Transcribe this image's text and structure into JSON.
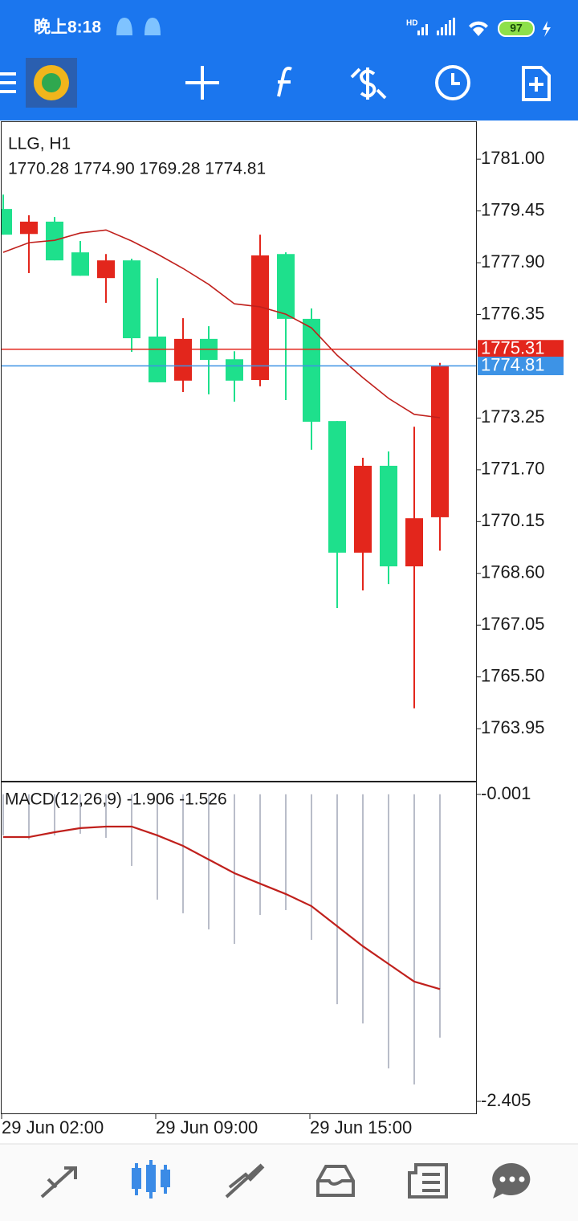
{
  "status_bar": {
    "time": "晚上8:18",
    "network": "HD",
    "battery": "97"
  },
  "chart_data": [
    {
      "type": "candlestick",
      "title": "LLG, H1",
      "subtitle": "1770.28 1774.90 1769.28 1774.81",
      "up_color": "#e3261c",
      "down_color": "#1ee08c",
      "open": [
        1779.51,
        1778.76,
        1779.13,
        1778.21,
        1777.44,
        1777.97,
        1775.69,
        1774.37,
        1775.62,
        1775.01,
        1774.39,
        1778.16,
        1776.22,
        1773.16,
        1769.22,
        1771.82,
        1768.81,
        1770.28
      ],
      "high": [
        1779.94,
        1779.32,
        1779.27,
        1778.55,
        1778.16,
        1778.02,
        1777.44,
        1776.24,
        1776.0,
        1775.25,
        1778.74,
        1778.21,
        1776.53,
        1773.16,
        1772.06,
        1772.25,
        1772.99,
        1774.9
      ],
      "low": [
        1778.74,
        1777.59,
        1777.97,
        1777.51,
        1776.7,
        1775.23,
        1774.32,
        1774.03,
        1773.96,
        1773.74,
        1774.2,
        1773.79,
        1772.3,
        1767.56,
        1768.09,
        1768.28,
        1764.56,
        1769.28
      ],
      "close": [
        1778.74,
        1779.13,
        1777.97,
        1777.51,
        1777.97,
        1775.64,
        1774.32,
        1775.62,
        1774.99,
        1774.37,
        1778.12,
        1776.22,
        1773.14,
        1769.22,
        1771.82,
        1768.81,
        1770.25,
        1774.81
      ],
      "overlays": [
        {
          "color": "#c0201c",
          "values": [
            1778.21,
            1778.5,
            1778.57,
            1778.79,
            1778.88,
            1778.55,
            1778.16,
            1777.73,
            1777.25,
            1776.67,
            1776.58,
            1776.36,
            1775.95,
            1775.13,
            1774.46,
            1773.84,
            1773.36,
            1773.26
          ]
        }
      ],
      "price_lines": [
        {
          "value": 1775.31,
          "color": "#e3261c"
        },
        {
          "value": 1774.81,
          "color": "#3d93e6"
        }
      ],
      "ylim": [
        1762.39,
        1782.11
      ],
      "yticks": [
        {
          "value": 1781,
          "label": "1781.00"
        },
        {
          "value": 1779.45,
          "label": "1779.45"
        },
        {
          "value": 1777.9,
          "label": "1777.90"
        },
        {
          "value": 1776.35,
          "label": "1776.35"
        },
        {
          "value": 1773.25,
          "label": "1773.25"
        },
        {
          "value": 1771.7,
          "label": "1771.70"
        },
        {
          "value": 1770.15,
          "label": "1770.15"
        },
        {
          "value": 1768.6,
          "label": "1768.60"
        },
        {
          "value": 1767.05,
          "label": "1767.05"
        },
        {
          "value": 1765.5,
          "label": "1765.50"
        },
        {
          "value": 1763.95,
          "label": "1763.95"
        }
      ]
    },
    {
      "type": "macd",
      "title": "MACD(12,26,9) -1.906 -1.526",
      "categories": [
        "29 Jun 02:00",
        null,
        null,
        null,
        null,
        null,
        "29 Jun 09:00",
        null,
        null,
        null,
        null,
        null,
        "29 Jun 15:00",
        null,
        null,
        null,
        null,
        null
      ],
      "histogram": {
        "color": "#b9bdc9",
        "values": [
          -0.322,
          -0.353,
          -0.322,
          -0.309,
          -0.341,
          -0.561,
          -0.825,
          -0.932,
          -1.058,
          -1.172,
          -0.945,
          -0.907,
          -1.14,
          -1.644,
          -1.795,
          -2.147,
          -2.273,
          -1.906
        ]
      },
      "signal": {
        "color": "#c0201c",
        "values": [
          -0.335,
          -0.335,
          -0.297,
          -0.265,
          -0.253,
          -0.253,
          -0.322,
          -0.404,
          -0.511,
          -0.618,
          -0.7,
          -0.781,
          -0.876,
          -1.033,
          -1.19,
          -1.329,
          -1.467,
          -1.526
        ]
      },
      "ylim": [
        -2.499,
        0.093
      ],
      "yticks": [
        -0.001,
        -2.405
      ]
    }
  ]
}
